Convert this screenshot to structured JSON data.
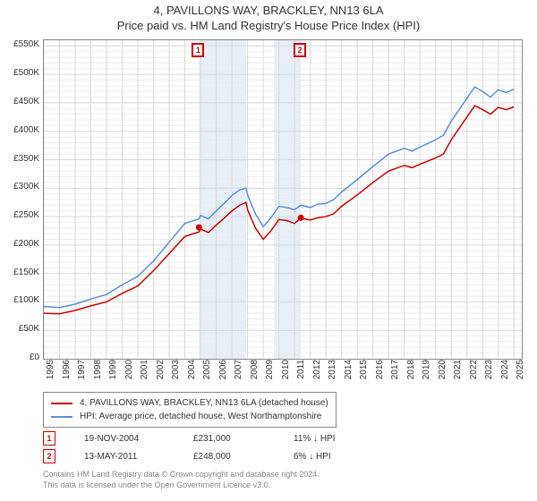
{
  "title_line1": "4, PAVILLONS WAY, BRACKLEY, NN13 6LA",
  "title_line2": "Price paid vs. HM Land Registry's House Price Index (HPI)",
  "chart": {
    "type": "line",
    "background_color": "#ffffff",
    "grid_minor_color": "#efefef",
    "grid_major_color": "#d9d9d9",
    "axis_color": "#888888",
    "text_color": "#333333",
    "shaded_region_color": "#e6eef7",
    "shaded_regions": [
      {
        "x_start": 2004.9,
        "x_end": 2007.9
      },
      {
        "x_start": 2009.7,
        "x_end": 2011.4
      }
    ],
    "x_axis": {
      "min": 1995,
      "max": 2025.5,
      "tick_step": 1,
      "ticks": [
        1995,
        1996,
        1997,
        1998,
        1999,
        2000,
        2001,
        2002,
        2003,
        2004,
        2005,
        2006,
        2007,
        2008,
        2009,
        2010,
        2011,
        2012,
        2013,
        2014,
        2015,
        2016,
        2017,
        2018,
        2019,
        2020,
        2021,
        2022,
        2023,
        2024,
        2025
      ],
      "label_fontsize": 10,
      "label_rotation": -90
    },
    "y_axis": {
      "min": 0,
      "max": 560000,
      "tick_step": 50000,
      "tick_labels": [
        "£0",
        "£50K",
        "£100K",
        "£150K",
        "£200K",
        "£250K",
        "£300K",
        "£350K",
        "£400K",
        "£450K",
        "£500K",
        "£550K"
      ],
      "label_fontsize": 10
    },
    "series": [
      {
        "name": "price_paid",
        "label": "4, PAVILLONS WAY, BRACKLEY, NN13 6LA (detached house)",
        "color": "#cc0000",
        "line_width": 1.5,
        "data": [
          [
            1995,
            80000
          ],
          [
            1996,
            79000
          ],
          [
            1997,
            85000
          ],
          [
            1998,
            93000
          ],
          [
            1999,
            100000
          ],
          [
            2000,
            115000
          ],
          [
            2001,
            128000
          ],
          [
            2002,
            155000
          ],
          [
            2003,
            185000
          ],
          [
            2004,
            215000
          ],
          [
            2004.9,
            223000
          ],
          [
            2005,
            228000
          ],
          [
            2005.5,
            222000
          ],
          [
            2006,
            235000
          ],
          [
            2006.5,
            247000
          ],
          [
            2007,
            260000
          ],
          [
            2007.5,
            270000
          ],
          [
            2007.9,
            275000
          ],
          [
            2008,
            262000
          ],
          [
            2008.5,
            230000
          ],
          [
            2009,
            210000
          ],
          [
            2009.5,
            225000
          ],
          [
            2010,
            245000
          ],
          [
            2010.5,
            243000
          ],
          [
            2011,
            238000
          ],
          [
            2011.4,
            247000
          ],
          [
            2012,
            244000
          ],
          [
            2012.5,
            248000
          ],
          [
            2013,
            250000
          ],
          [
            2013.5,
            255000
          ],
          [
            2014,
            268000
          ],
          [
            2015,
            288000
          ],
          [
            2016,
            310000
          ],
          [
            2017,
            330000
          ],
          [
            2018,
            340000
          ],
          [
            2018.5,
            336000
          ],
          [
            2019,
            342000
          ],
          [
            2020,
            353000
          ],
          [
            2020.5,
            360000
          ],
          [
            2021,
            385000
          ],
          [
            2021.5,
            405000
          ],
          [
            2022,
            425000
          ],
          [
            2022.5,
            445000
          ],
          [
            2023,
            438000
          ],
          [
            2023.5,
            430000
          ],
          [
            2024,
            442000
          ],
          [
            2024.5,
            438000
          ],
          [
            2025,
            443000
          ]
        ]
      },
      {
        "name": "hpi",
        "label": "HPI: Average price, detached house, West Northamptonshire",
        "color": "#5b8fd6",
        "line_width": 1.5,
        "data": [
          [
            1995,
            92000
          ],
          [
            1996,
            90000
          ],
          [
            1997,
            96000
          ],
          [
            1998,
            105000
          ],
          [
            1999,
            113000
          ],
          [
            2000,
            130000
          ],
          [
            2001,
            145000
          ],
          [
            2002,
            172000
          ],
          [
            2003,
            205000
          ],
          [
            2004,
            238000
          ],
          [
            2004.9,
            246000
          ],
          [
            2005,
            252000
          ],
          [
            2005.5,
            246000
          ],
          [
            2006,
            260000
          ],
          [
            2006.5,
            273000
          ],
          [
            2007,
            287000
          ],
          [
            2007.5,
            297000
          ],
          [
            2007.9,
            300000
          ],
          [
            2008,
            288000
          ],
          [
            2008.5,
            255000
          ],
          [
            2009,
            232000
          ],
          [
            2009.5,
            248000
          ],
          [
            2010,
            268000
          ],
          [
            2010.5,
            266000
          ],
          [
            2011,
            262000
          ],
          [
            2011.4,
            270000
          ],
          [
            2012,
            266000
          ],
          [
            2012.5,
            272000
          ],
          [
            2013,
            273000
          ],
          [
            2013.5,
            280000
          ],
          [
            2014,
            293000
          ],
          [
            2015,
            315000
          ],
          [
            2016,
            338000
          ],
          [
            2017,
            360000
          ],
          [
            2018,
            370000
          ],
          [
            2018.5,
            365000
          ],
          [
            2019,
            372000
          ],
          [
            2020,
            385000
          ],
          [
            2020.5,
            393000
          ],
          [
            2021,
            418000
          ],
          [
            2021.5,
            438000
          ],
          [
            2022,
            458000
          ],
          [
            2022.5,
            478000
          ],
          [
            2023,
            470000
          ],
          [
            2023.5,
            460000
          ],
          [
            2024,
            473000
          ],
          [
            2024.5,
            468000
          ],
          [
            2025,
            474000
          ]
        ]
      }
    ],
    "markers": [
      {
        "id": "1",
        "x": 2004.9,
        "y": 231000,
        "box_color": "#cc0000",
        "dot_color": "#cc0000"
      },
      {
        "id": "2",
        "x": 2011.4,
        "y": 248000,
        "box_color": "#cc0000",
        "dot_color": "#cc0000"
      }
    ]
  },
  "legend": {
    "items": [
      {
        "color": "#cc0000",
        "label": "4, PAVILLONS WAY, BRACKLEY, NN13 6LA (detached house)"
      },
      {
        "color": "#5b8fd6",
        "label": "HPI: Average price, detached house, West Northamptonshire"
      }
    ]
  },
  "transactions": [
    {
      "id": "1",
      "date": "19-NOV-2004",
      "price": "£231,000",
      "delta": "11% ↓ HPI"
    },
    {
      "id": "2",
      "date": "13-MAY-2011",
      "price": "£248,000",
      "delta": "6% ↓ HPI"
    }
  ],
  "footer_line1": "Contains HM Land Registry data © Crown copyright and database right 2024.",
  "footer_line2": "This data is licensed under the Open Government Licence v3.0."
}
